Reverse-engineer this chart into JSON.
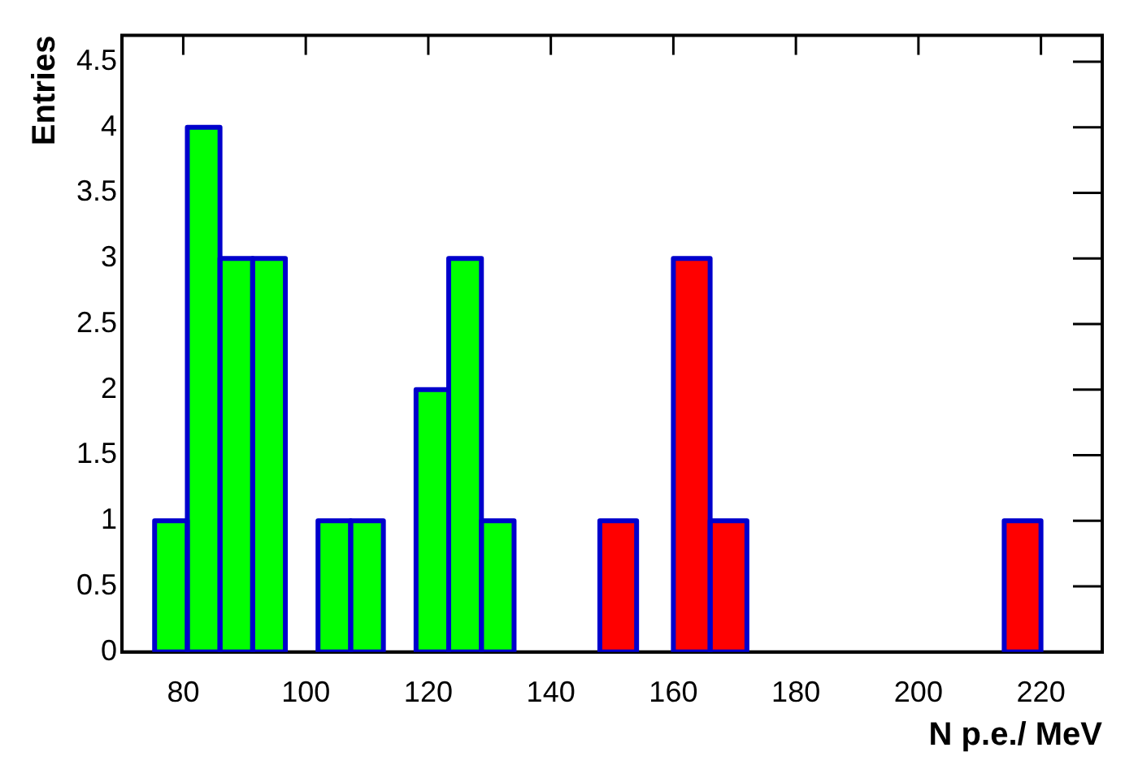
{
  "chart_data": {
    "type": "histogram",
    "xlabel": "N p.e./ MeV",
    "ylabel": "Entries",
    "bins": [
      75.33,
      80.67,
      86,
      91.33,
      96.67,
      102,
      107.33,
      112.67,
      118,
      123.33,
      128.67,
      134,
      148,
      154,
      160,
      166,
      172,
      214,
      220
    ],
    "series": [
      {
        "color": "#00ff00",
        "values": [
          1,
          4,
          3,
          3,
          0,
          1,
          1,
          0,
          2,
          3,
          1,
          0,
          0,
          0,
          0,
          0,
          0,
          0
        ]
      },
      {
        "color": "#ff0000",
        "values": [
          0,
          0,
          0,
          0,
          0,
          0,
          0,
          0,
          0,
          0,
          0,
          0,
          1,
          0,
          3,
          1,
          0,
          1
        ]
      }
    ],
    "xlim": [
      70,
      230
    ],
    "xticks": [
      80,
      100,
      120,
      140,
      160,
      180,
      200,
      220
    ],
    "ylim": [
      0,
      4.7
    ],
    "yticks": [
      0,
      0.5,
      1,
      1.5,
      2,
      2.5,
      3,
      3.5,
      4,
      4.5
    ],
    "grid": false,
    "legend": false
  }
}
